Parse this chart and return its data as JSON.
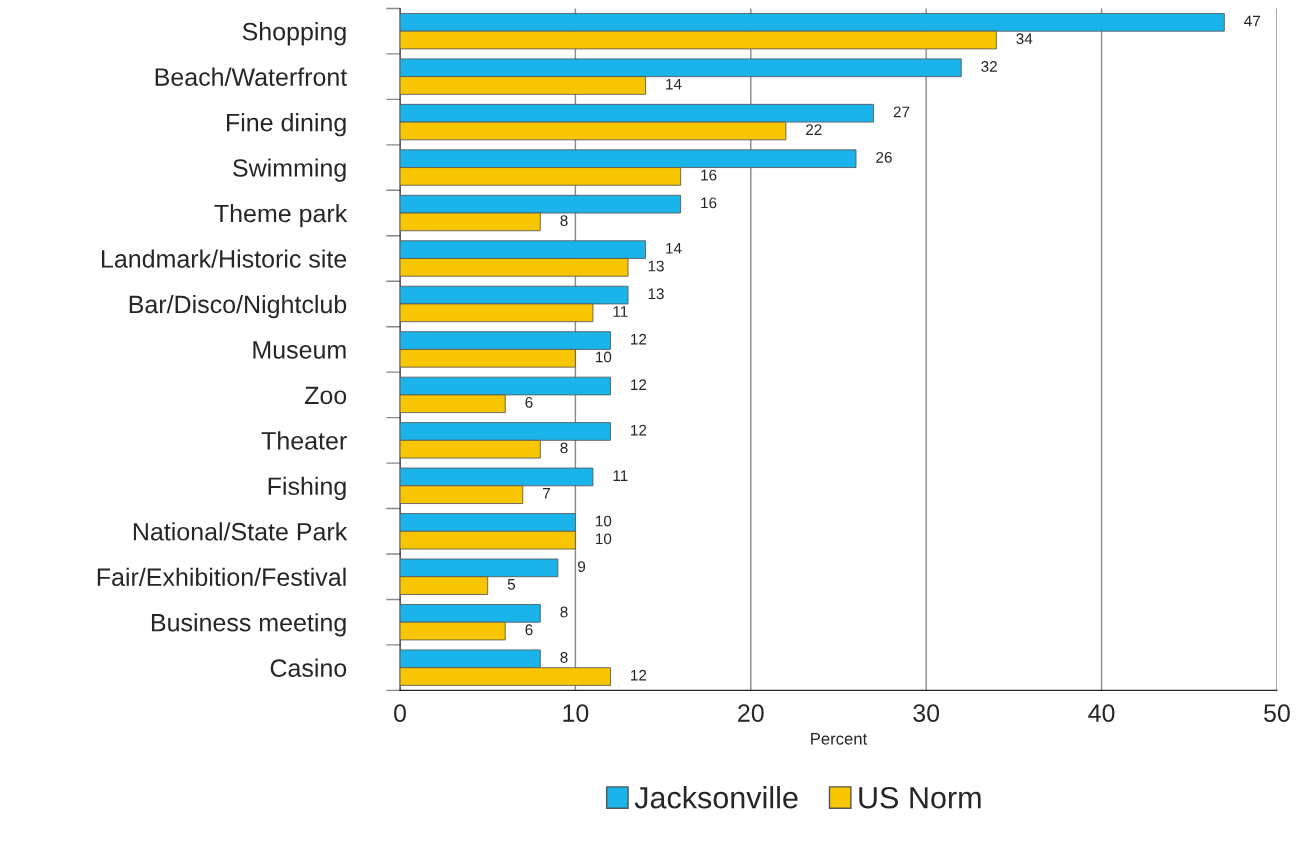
{
  "chart_data": {
    "type": "bar",
    "orientation": "horizontal",
    "categories": [
      "Shopping",
      "Beach/Waterfront",
      "Fine dining",
      "Swimming",
      "Theme park",
      "Landmark/Historic site",
      "Bar/Disco/Nightclub",
      "Museum",
      "Zoo",
      "Theater",
      "Fishing",
      "National/State Park",
      "Fair/Exhibition/Festival",
      "Business meeting",
      "Casino"
    ],
    "series": [
      {
        "name": "Jacksonville",
        "color": "#1ab4ea",
        "values": [
          47,
          32,
          27,
          26,
          16,
          14,
          13,
          12,
          12,
          12,
          11,
          10,
          9,
          8,
          8
        ]
      },
      {
        "name": "US Norm",
        "color": "#f7c600",
        "values": [
          34,
          14,
          22,
          16,
          8,
          13,
          11,
          10,
          6,
          8,
          7,
          10,
          5,
          6,
          12
        ]
      }
    ],
    "xlabel": "Percent",
    "xlim": [
      0,
      50
    ],
    "xticks": [
      0,
      10,
      20,
      30,
      40,
      50
    ],
    "grid": "x",
    "legend": "bottom",
    "data_labels": true
  }
}
